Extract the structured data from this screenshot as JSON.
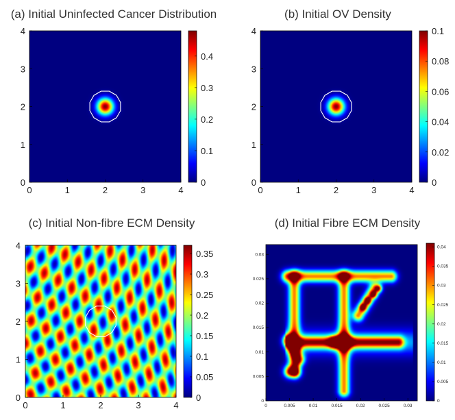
{
  "chart_data": [
    {
      "id": "a",
      "type": "heatmap",
      "title": "(a) Initial Uninfected Cancer Distribution",
      "pattern": "gaussian-blob",
      "xlim": [
        0,
        4
      ],
      "ylim": [
        0,
        4
      ],
      "x_ticks": [
        "0",
        "1",
        "2",
        "3",
        "4"
      ],
      "y_ticks": [
        "0",
        "1",
        "2",
        "3",
        "4"
      ],
      "colorbar": {
        "range": [
          0,
          0.48
        ],
        "ticks": [
          "0",
          "0.1",
          "0.2",
          "0.3",
          "0.4"
        ],
        "tick_values": [
          0,
          0.1,
          0.2,
          0.3,
          0.4
        ]
      },
      "blob": {
        "center": [
          2,
          2
        ],
        "peak": 0.48
      },
      "boundary_circle": {
        "center": [
          2,
          2
        ],
        "radius": 0.42
      },
      "colormap": "jet"
    },
    {
      "id": "b",
      "type": "heatmap",
      "title": "(b) Initial OV Density",
      "pattern": "gaussian-blob",
      "xlim": [
        0,
        4
      ],
      "ylim": [
        0,
        4
      ],
      "x_ticks": [
        "0",
        "1",
        "2",
        "3",
        "4"
      ],
      "y_ticks": [
        "0",
        "1",
        "2",
        "3",
        "4"
      ],
      "colorbar": {
        "range": [
          0,
          0.1
        ],
        "ticks": [
          "0",
          "0.02",
          "0.04",
          "0.06",
          "0.08",
          "0.1"
        ],
        "tick_values": [
          0,
          0.02,
          0.04,
          0.06,
          0.08,
          0.1
        ]
      },
      "blob": {
        "center": [
          2,
          2
        ],
        "peak": 0.1
      },
      "boundary_circle": {
        "center": [
          2,
          2
        ],
        "radius": 0.42
      },
      "colormap": "jet"
    },
    {
      "id": "c",
      "type": "heatmap",
      "title": "(c) Initial Non-fibre ECM Density",
      "pattern": "oscillatory",
      "xlim": [
        0,
        4
      ],
      "ylim": [
        0,
        4
      ],
      "x_ticks": [
        "0",
        "1",
        "2",
        "3",
        "4"
      ],
      "y_ticks": [
        "0",
        "1",
        "2",
        "3",
        "4"
      ],
      "colorbar": {
        "range": [
          0,
          0.37
        ],
        "ticks": [
          "0",
          "0.05",
          "0.1",
          "0.15",
          "0.2",
          "0.25",
          "0.3",
          "0.35"
        ],
        "tick_values": [
          0,
          0.05,
          0.1,
          0.15,
          0.2,
          0.25,
          0.3,
          0.35
        ]
      },
      "boundary_circle": {
        "center": [
          2,
          2
        ],
        "radius": 0.42
      },
      "colormap": "jet"
    },
    {
      "id": "d",
      "type": "heatmap",
      "title": "(d) Initial Fibre ECM Density",
      "pattern": "fibre-lines",
      "xlim": [
        0,
        0.032
      ],
      "ylim": [
        0,
        0.032
      ],
      "x_ticks": [
        "0",
        "0.005",
        "0.01",
        "0.015",
        "0.02",
        "0.025",
        "0.03"
      ],
      "x_tick_values": [
        0,
        0.005,
        0.01,
        0.015,
        0.02,
        0.025,
        0.03
      ],
      "y_ticks": [
        "0",
        "0.005",
        "0.01",
        "0.015",
        "0.02",
        "0.025",
        "0.03"
      ],
      "y_tick_values": [
        0,
        0.005,
        0.01,
        0.015,
        0.02,
        0.025,
        0.03
      ],
      "colorbar": {
        "range": [
          0,
          0.041
        ],
        "ticks": [
          "0",
          "0.005",
          "0.01",
          "0.015",
          "0.02",
          "0.025",
          "0.03",
          "0.035",
          "0.04"
        ],
        "tick_values": [
          0,
          0.005,
          0.01,
          0.015,
          0.02,
          0.025,
          0.03,
          0.035,
          0.04
        ]
      },
      "colormap": "jet"
    }
  ]
}
